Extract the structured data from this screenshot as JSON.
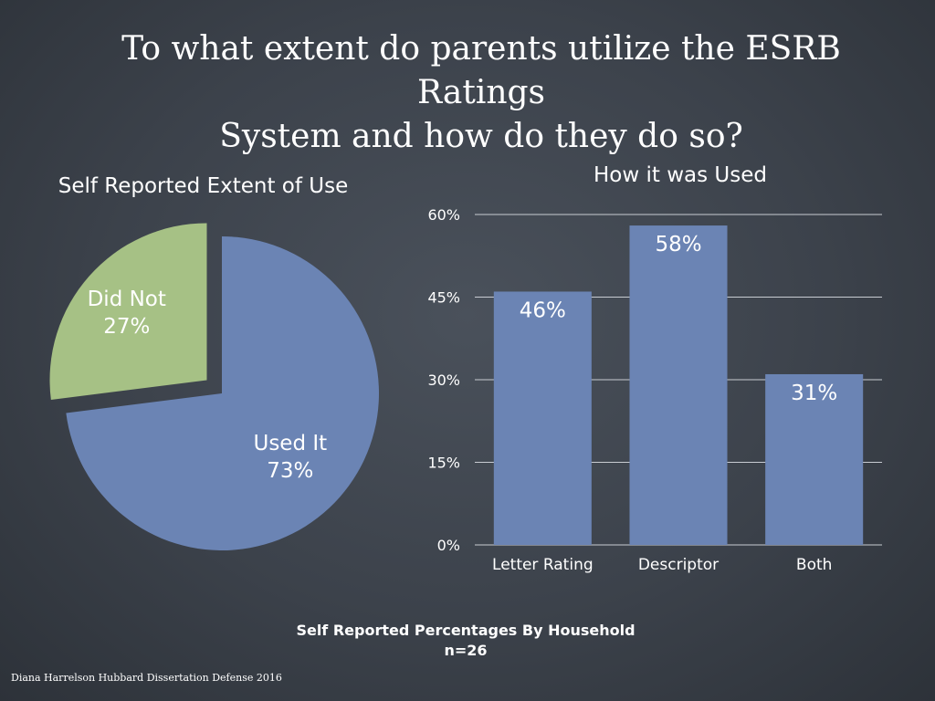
{
  "slide": {
    "title_line1": "To what extent do parents utilize the ESRB Ratings",
    "title_line2": "System and how do they do so?",
    "footer_line1": "Self Reported Percentages By Household",
    "footer_line2": "n=26",
    "credit": "Diana Harrelson Hubbard Dissertation Defense 2016"
  },
  "colors": {
    "blue": "#6b84b4",
    "green": "#a6c185",
    "gridline": "#c8ccd2"
  },
  "chart_data": [
    {
      "type": "pie",
      "title": "Self Reported Extent of Use",
      "slices": [
        {
          "label": "Used It",
          "value": 73,
          "display": "73%",
          "color": "#6b84b4",
          "exploded": false
        },
        {
          "label": "Did Not",
          "value": 27,
          "display": "27%",
          "color": "#a6c185",
          "exploded": true
        }
      ]
    },
    {
      "type": "bar",
      "title": "How it was Used",
      "categories": [
        "Letter Rating",
        "Descriptor",
        "Both"
      ],
      "values": [
        46,
        58,
        31
      ],
      "data_labels": [
        "46%",
        "58%",
        "31%"
      ],
      "ylim": [
        0,
        60
      ],
      "yticks": [
        0,
        15,
        30,
        45,
        60
      ],
      "ytick_labels": [
        "0%",
        "15%",
        "30%",
        "45%",
        "60%"
      ],
      "grid": true,
      "color": "#6b84b4"
    }
  ]
}
